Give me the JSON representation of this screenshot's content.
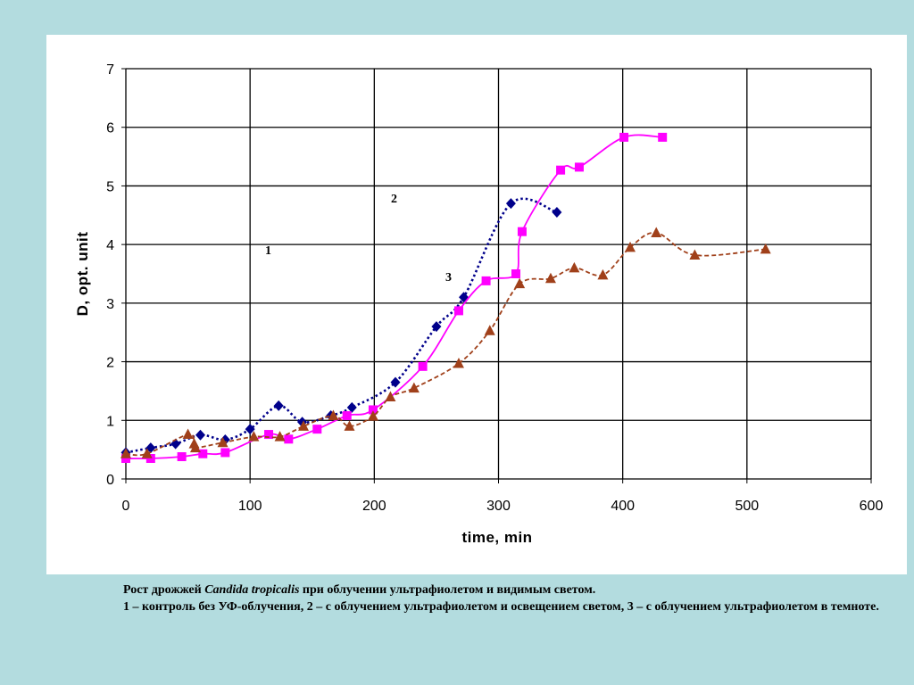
{
  "chart_data": {
    "type": "line",
    "xlabel": "time, min",
    "ylabel": "D, opt. unit",
    "xlim": [
      0,
      600
    ],
    "ylim": [
      0,
      7
    ],
    "x_ticks": [
      "0",
      "100",
      "200",
      "300",
      "400",
      "500",
      "600"
    ],
    "y_ticks": [
      "0",
      "1",
      "2",
      "3",
      "4",
      "5",
      "6",
      "7"
    ],
    "grid": true,
    "legend": "none",
    "annotations": [
      "1",
      "2",
      "3"
    ],
    "series": [
      {
        "marker": "diamond",
        "color": "#00008b",
        "line_style": "dotted",
        "points": [
          [
            0,
            0.45
          ],
          [
            20,
            0.53
          ],
          [
            40,
            0.6
          ],
          [
            60,
            0.75
          ],
          [
            80,
            0.67
          ],
          [
            100,
            0.85
          ],
          [
            123,
            1.25
          ],
          [
            142,
            0.97
          ],
          [
            165,
            1.08
          ],
          [
            182,
            1.22
          ],
          [
            217,
            1.65
          ],
          [
            250,
            2.6
          ],
          [
            272,
            3.1
          ],
          [
            310,
            4.7
          ],
          [
            347,
            4.55
          ]
        ]
      },
      {
        "marker": "square",
        "color": "#ff00ff",
        "line_style": "solid",
        "points": [
          [
            0,
            0.35
          ],
          [
            20,
            0.35
          ],
          [
            45,
            0.38
          ],
          [
            62,
            0.43
          ],
          [
            80,
            0.45
          ],
          [
            115,
            0.76
          ],
          [
            131,
            0.68
          ],
          [
            154,
            0.85
          ],
          [
            178,
            1.08
          ],
          [
            199,
            1.18
          ],
          [
            239,
            1.92
          ],
          [
            268,
            2.87
          ],
          [
            290,
            3.38
          ],
          [
            314,
            3.5
          ],
          [
            319,
            4.22
          ],
          [
            350,
            5.27
          ],
          [
            365,
            5.32
          ],
          [
            401,
            5.83
          ],
          [
            432,
            5.83
          ]
        ]
      },
      {
        "marker": "triangle",
        "color": "#a0401a",
        "line_style": "dashed",
        "points": [
          [
            0,
            0.43
          ],
          [
            17,
            0.43
          ],
          [
            50,
            0.76
          ],
          [
            55,
            0.6
          ],
          [
            56,
            0.53
          ],
          [
            78,
            0.62
          ],
          [
            103,
            0.72
          ],
          [
            124,
            0.72
          ],
          [
            143,
            0.9
          ],
          [
            167,
            1.08
          ],
          [
            180,
            0.9
          ],
          [
            199,
            1.07
          ],
          [
            213,
            1.4
          ],
          [
            232,
            1.55
          ],
          [
            268,
            1.97
          ],
          [
            293,
            2.53
          ],
          [
            317,
            3.33
          ],
          [
            342,
            3.42
          ],
          [
            361,
            3.6
          ],
          [
            384,
            3.48
          ],
          [
            406,
            3.95
          ],
          [
            427,
            4.2
          ],
          [
            458,
            3.82
          ],
          [
            515,
            3.92
          ]
        ]
      }
    ]
  },
  "caption": {
    "line1_prefix": "Рост дрожжей ",
    "line1_species": "Candida tropicalis",
    "line1_suffix": " при облучении ультрафиолетом и видимым светом.",
    "line2": "1 – контроль без УФ-облучения, 2 – с облучением ультрафиолетом и освещением светом, 3 – с облучением ультрафиолетом в темноте."
  },
  "colors": {
    "background": "#b3dcdf",
    "panel": "#ffffff"
  }
}
